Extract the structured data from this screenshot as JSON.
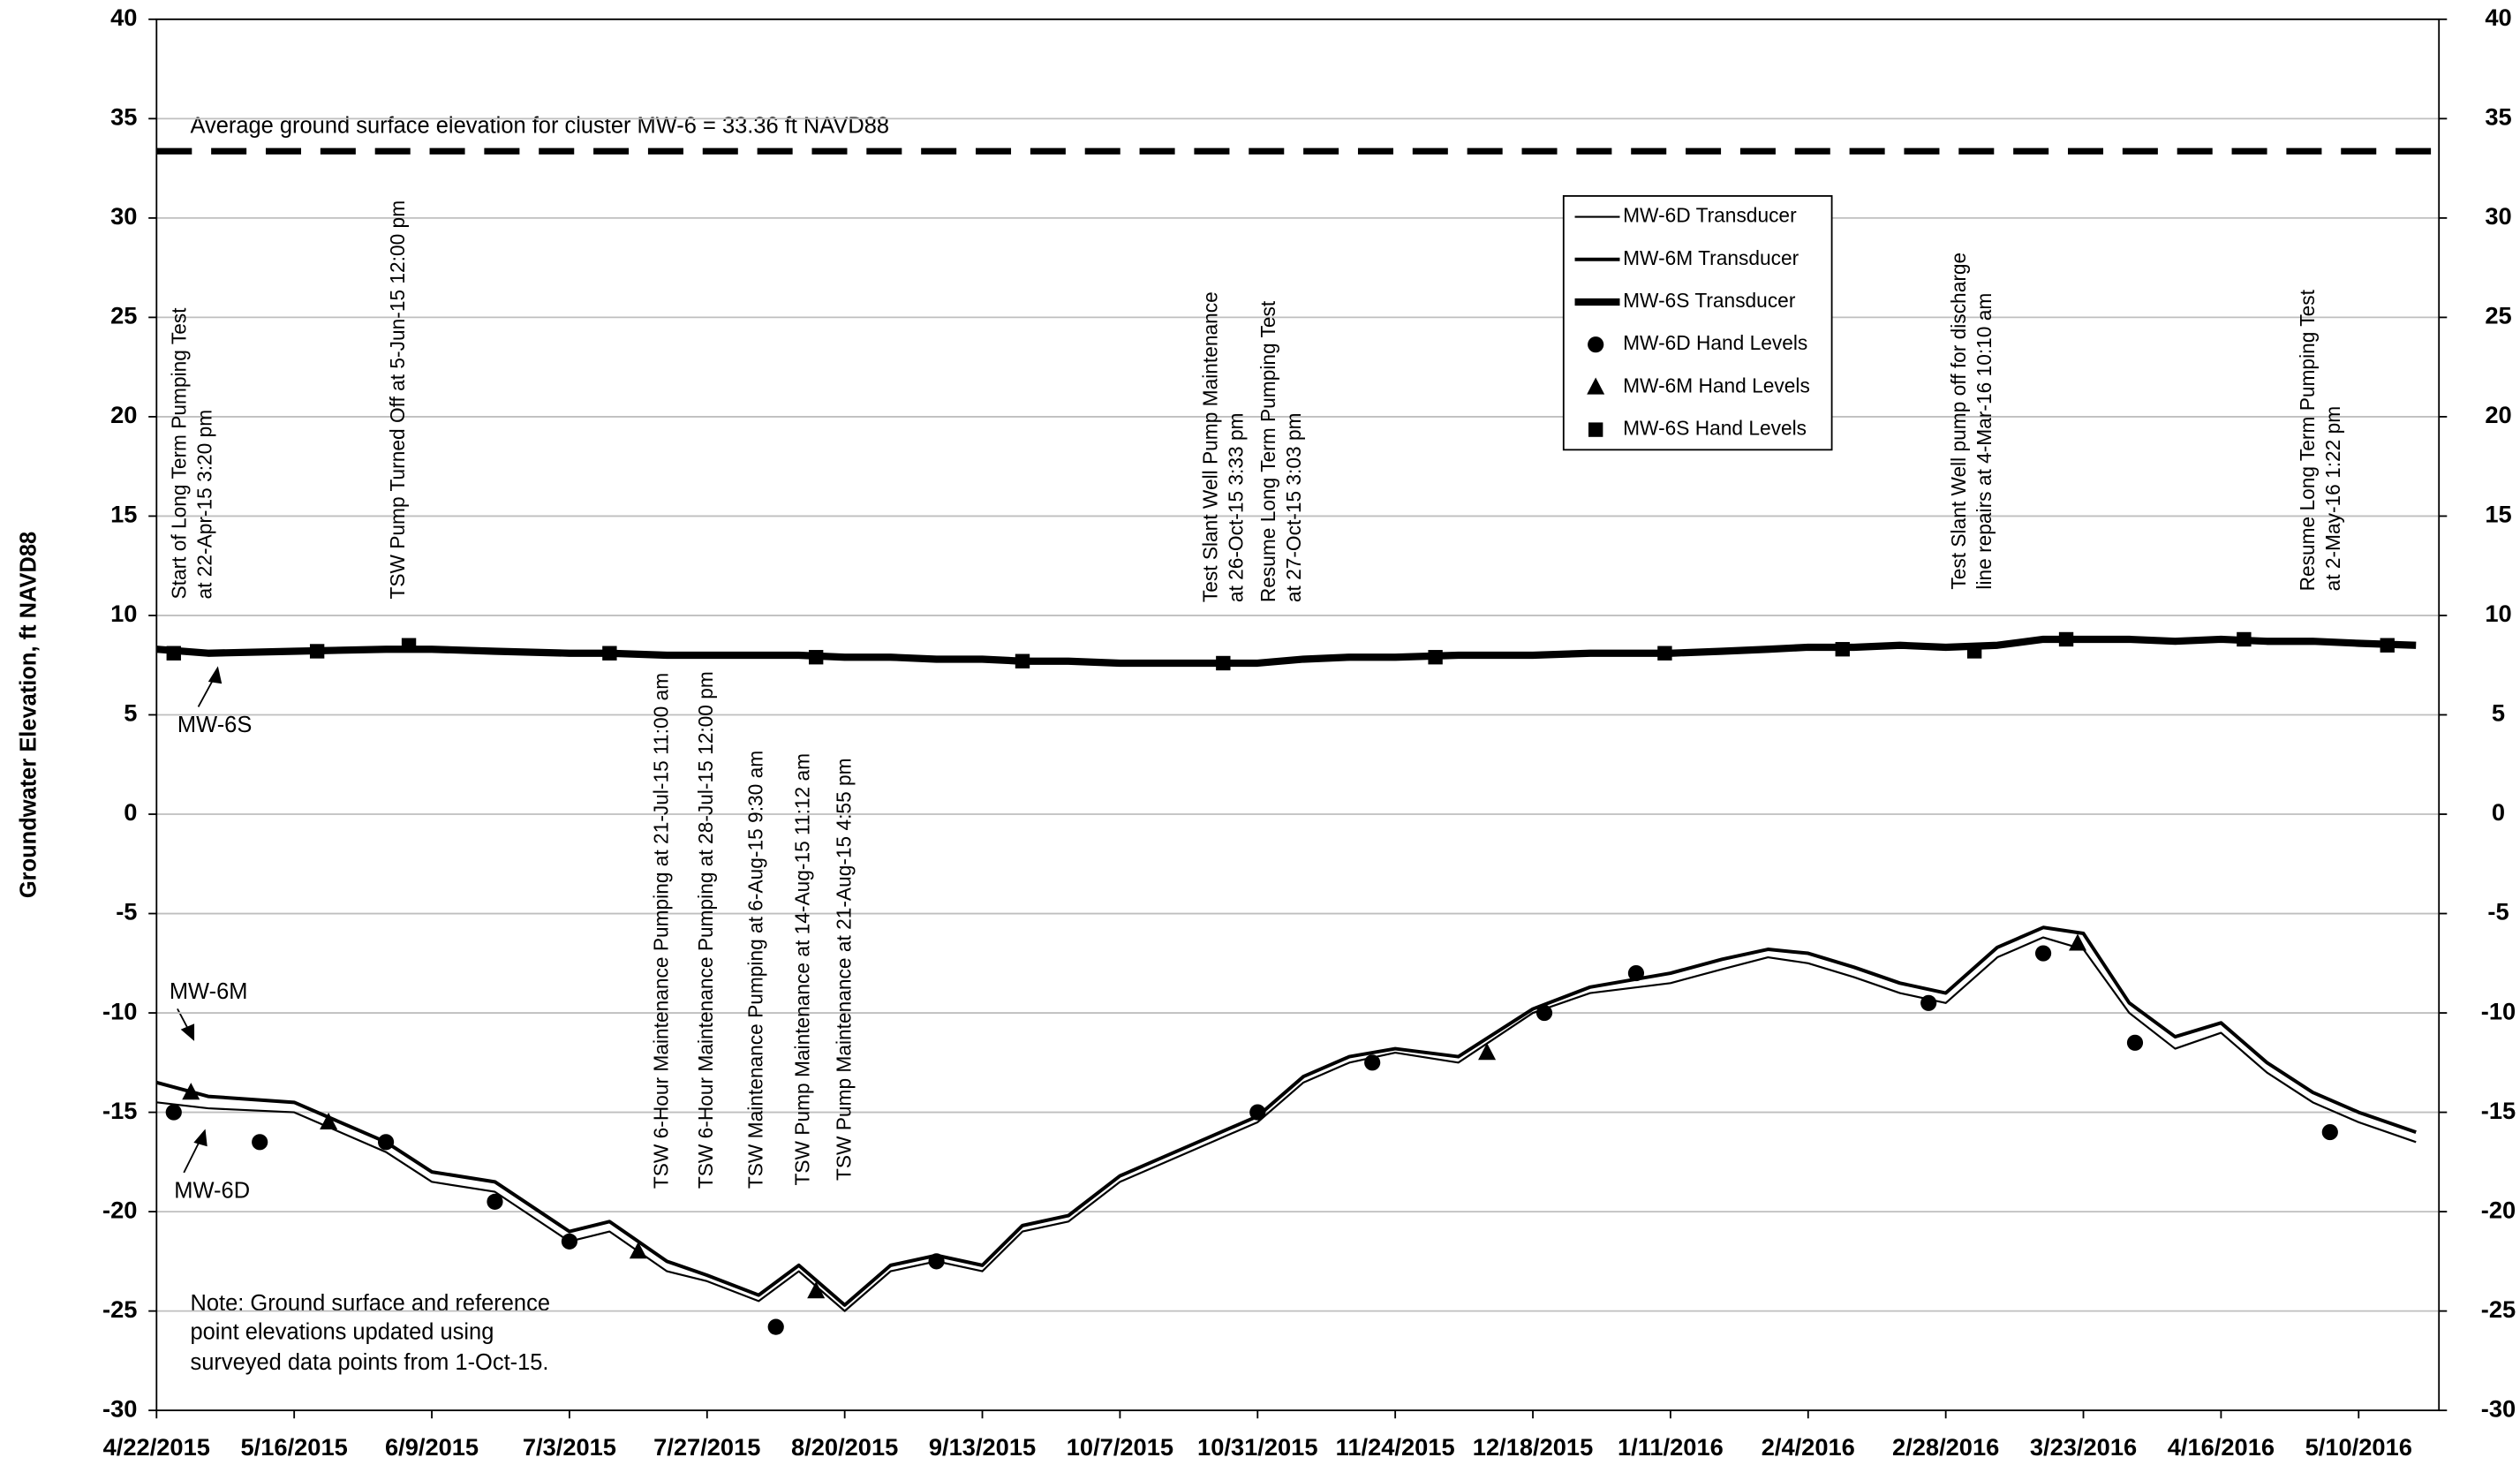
{
  "chart_data": {
    "type": "line",
    "y_label": "Groundwater Elevation, ft NAVD88",
    "xlim": [
      "2015-04-22",
      "2016-05-24"
    ],
    "xticks": [
      {
        "value": "2015-04-22",
        "label": "4/22/2015"
      },
      {
        "value": "2015-05-16",
        "label": "5/16/2015"
      },
      {
        "value": "2015-06-09",
        "label": "6/9/2015"
      },
      {
        "value": "2015-07-03",
        "label": "7/3/2015"
      },
      {
        "value": "2015-07-27",
        "label": "7/27/2015"
      },
      {
        "value": "2015-08-20",
        "label": "8/20/2015"
      },
      {
        "value": "2015-09-13",
        "label": "9/13/2015"
      },
      {
        "value": "2015-10-07",
        "label": "10/7/2015"
      },
      {
        "value": "2015-10-31",
        "label": "10/31/2015"
      },
      {
        "value": "2015-11-24",
        "label": "11/24/2015"
      },
      {
        "value": "2015-12-18",
        "label": "12/18/2015"
      },
      {
        "value": "2016-01-11",
        "label": "1/11/2016"
      },
      {
        "value": "2016-02-04",
        "label": "2/4/2016"
      },
      {
        "value": "2016-02-28",
        "label": "2/28/2016"
      },
      {
        "value": "2016-03-23",
        "label": "3/23/2016"
      },
      {
        "value": "2016-04-16",
        "label": "4/16/2016"
      },
      {
        "value": "2016-05-10",
        "label": "5/10/2016"
      }
    ],
    "ylim": [
      -30,
      40
    ],
    "yticks": [
      -30,
      -25,
      -20,
      -15,
      -10,
      -5,
      0,
      5,
      10,
      15,
      20,
      25,
      30,
      35,
      40
    ],
    "y2lim": [
      -30,
      40
    ],
    "y2ticks": [
      -30,
      -25,
      -20,
      -15,
      -10,
      -5,
      0,
      5,
      10,
      15,
      20,
      25,
      30,
      35,
      40
    ],
    "grid": true,
    "ground_surface": 33.36,
    "ground_surface_label": "Average ground surface elevation for cluster MW-6 = 33.36 ft NAVD88",
    "x": [
      "2015-04-22",
      "2015-05-01",
      "2015-05-16",
      "2015-06-01",
      "2015-06-09",
      "2015-06-20",
      "2015-07-03",
      "2015-07-10",
      "2015-07-20",
      "2015-07-27",
      "2015-08-05",
      "2015-08-12",
      "2015-08-20",
      "2015-08-28",
      "2015-09-05",
      "2015-09-13",
      "2015-09-20",
      "2015-09-28",
      "2015-10-07",
      "2015-10-15",
      "2015-10-23",
      "2015-10-31",
      "2015-11-08",
      "2015-11-16",
      "2015-11-24",
      "2015-12-05",
      "2015-12-18",
      "2015-12-28",
      "2016-01-11",
      "2016-01-20",
      "2016-01-28",
      "2016-02-04",
      "2016-02-12",
      "2016-02-20",
      "2016-02-28",
      "2016-03-08",
      "2016-03-16",
      "2016-03-23",
      "2016-03-31",
      "2016-04-08",
      "2016-04-16",
      "2016-04-24",
      "2016-05-02",
      "2016-05-10",
      "2016-05-20"
    ],
    "series": [
      {
        "name": "MW-6D Transducer",
        "color": "#000000",
        "mark": "line",
        "width": 1.2,
        "values": [
          -14.5,
          -14.8,
          -15.0,
          -17.0,
          -18.5,
          -19.0,
          -21.5,
          -21.0,
          -23.0,
          -23.5,
          -24.5,
          -23.0,
          -25.0,
          -23.0,
          -22.5,
          -23.0,
          -21.0,
          -20.5,
          -18.5,
          -17.5,
          -16.5,
          -15.5,
          -13.5,
          -12.5,
          -12.0,
          -12.5,
          -10.0,
          -9.0,
          -8.5,
          -7.8,
          -7.2,
          -7.5,
          -8.2,
          -9.0,
          -9.5,
          -7.2,
          -6.2,
          -6.8,
          -10.0,
          -11.8,
          -11.0,
          -13.0,
          -14.5,
          -15.5,
          -16.5
        ]
      },
      {
        "name": "MW-6M Transducer",
        "color": "#000000",
        "mark": "line",
        "width": 2.2,
        "values": [
          -13.5,
          -14.2,
          -14.5,
          -16.5,
          -18.0,
          -18.5,
          -21.0,
          -20.5,
          -22.5,
          -23.2,
          -24.2,
          -22.7,
          -24.7,
          -22.7,
          -22.2,
          -22.7,
          -20.7,
          -20.2,
          -18.2,
          -17.2,
          -16.2,
          -15.2,
          -13.2,
          -12.2,
          -11.8,
          -12.2,
          -9.8,
          -8.7,
          -8.0,
          -7.3,
          -6.8,
          -7.0,
          -7.7,
          -8.5,
          -9.0,
          -6.7,
          -5.7,
          -6.0,
          -9.5,
          -11.2,
          -10.5,
          -12.5,
          -14.0,
          -15.0,
          -16.0
        ]
      },
      {
        "name": "MW-6S Transducer",
        "color": "#000000",
        "mark": "line",
        "width": 4.5,
        "values": [
          8.3,
          8.1,
          8.2,
          8.3,
          8.3,
          8.2,
          8.1,
          8.1,
          8.0,
          8.0,
          8.0,
          8.0,
          7.9,
          7.9,
          7.8,
          7.8,
          7.7,
          7.7,
          7.6,
          7.6,
          7.6,
          7.6,
          7.8,
          7.9,
          7.9,
          8.0,
          8.0,
          8.1,
          8.1,
          8.2,
          8.3,
          8.4,
          8.4,
          8.5,
          8.4,
          8.5,
          8.8,
          8.8,
          8.8,
          8.7,
          8.8,
          8.7,
          8.7,
          8.6,
          8.5
        ]
      },
      {
        "name": "MW-6D Hand Levels",
        "color": "#000000",
        "mark": "circle",
        "x": [
          "2015-04-25",
          "2015-05-10",
          "2015-06-01",
          "2015-06-20",
          "2015-07-03",
          "2015-08-08",
          "2015-09-05",
          "2015-10-31",
          "2015-11-20",
          "2015-12-20",
          "2016-01-05",
          "2016-02-25",
          "2016-03-16",
          "2016-04-01",
          "2016-05-05"
        ],
        "values": [
          -15.0,
          -16.5,
          -16.5,
          -19.5,
          -21.5,
          -25.8,
          -22.5,
          -15.0,
          -12.5,
          -10.0,
          -8.0,
          -9.5,
          -7.0,
          -11.5,
          -16.0
        ]
      },
      {
        "name": "MW-6M Hand Levels",
        "color": "#000000",
        "mark": "triangle",
        "x": [
          "2015-04-28",
          "2015-05-22",
          "2015-07-15",
          "2015-08-15",
          "2015-12-10",
          "2016-03-22"
        ],
        "values": [
          -14.0,
          -15.5,
          -22.0,
          -24.0,
          -12.0,
          -6.5
        ]
      },
      {
        "name": "MW-6S Hand Levels",
        "color": "#000000",
        "mark": "square",
        "x": [
          "2015-04-25",
          "2015-05-20",
          "2015-06-05",
          "2015-07-10",
          "2015-08-15",
          "2015-09-20",
          "2015-10-25",
          "2015-12-01",
          "2016-01-10",
          "2016-02-10",
          "2016-03-04",
          "2016-03-20",
          "2016-04-20",
          "2016-05-15"
        ],
        "values": [
          8.1,
          8.2,
          8.5,
          8.1,
          7.9,
          7.7,
          7.6,
          7.9,
          8.1,
          8.3,
          8.2,
          8.8,
          8.8,
          8.5
        ]
      }
    ],
    "annotations": [
      [
        "Start of Long Term Pumping Test",
        "at 22-Apr-15 3:20 pm"
      ],
      [
        "TSW Pump Turned Off at 5-Jun-15 12:00 pm"
      ],
      [
        "TSW 6-Hour Maintenance Pumping at 21-Jul-15 11:00 am"
      ],
      [
        "TSW 6-Hour Maintenance Pumping at 28-Jul-15 12:00 pm"
      ],
      [
        "TSW Maintenance Pumping at 6-Aug-15 9:30 am"
      ],
      [
        "TSW Pump Maintenance at 14-Aug-15 11:12 am"
      ],
      [
        "TSW Pump Maintenance at 21-Aug-15 4:55 pm"
      ],
      [
        "Test Slant Well Pump Maintenance",
        "at 26-Oct-15 3:33 pm"
      ],
      [
        "Resume Long Term Pumping Test",
        "at 27-Oct-15 3:03 pm"
      ],
      [
        "Test Slant Well pump off for discharge",
        "line repairs at 4-Mar-16 10:10 am"
      ],
      [
        "Resume Long Term Pumping Test",
        "at 2-May-16 1:22 pm"
      ]
    ],
    "callouts": [
      "MW-6S",
      "MW-6M",
      "MW-6D"
    ],
    "note": [
      "Note: Ground surface and reference",
      "point elevations updated using",
      "surveyed data points from 1-Oct-15."
    ]
  }
}
